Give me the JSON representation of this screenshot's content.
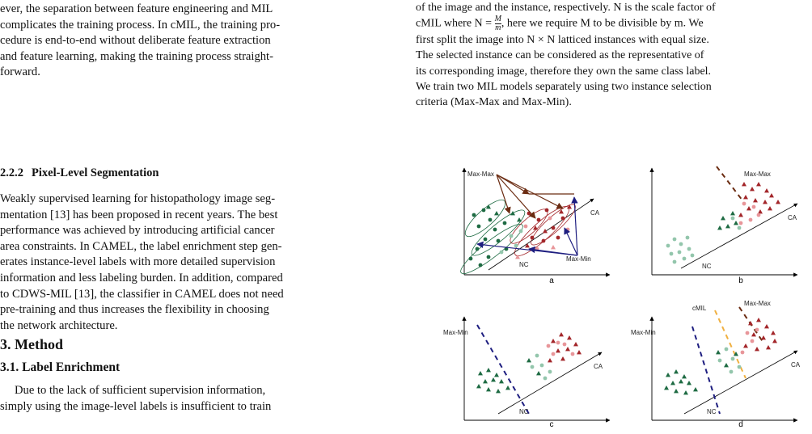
{
  "left": {
    "para1_lines": [
      "ever, the separation between feature engineering and MIL",
      "complicates the training process. In cMIL, the training pro-",
      "cedure is end-to-end without deliberate feature extraction",
      "and feature learning, making the training process straight-",
      "forward."
    ],
    "subsection_number": "2.2.2",
    "subsection_title": "Pixel-Level Segmentation",
    "para2_lines": [
      "Weakly supervised learning for histopathology image seg-",
      "mentation [13] has been proposed in recent years. The best",
      "performance was achieved by introducing artificial cancer",
      "area constraints. In CAMEL, the label enrichment step gen-",
      "erates instance-level labels with more detailed supervision",
      "information and less labeling burden. In addition, compared",
      "to CDWS-MIL [13], the classifier in CAMEL does not need",
      "pre-training and thus increases the flexibility in choosing",
      "the network architecture."
    ],
    "section_title": "3. Method",
    "section_sub_title": "3.1. Label Enrichment",
    "para3_lines": [
      "Due to the lack of sufficient supervision information,",
      "simply using the image-level labels is insufficient to train"
    ]
  },
  "right": {
    "line1": "of the image and the instance, respectively. N is the scale factor of",
    "line2_a": "cMIL where N = ",
    "line2_frac_num": "M",
    "line2_frac_den": "m",
    "line2_b": ", here we require M to be divisible by m. We",
    "lines_rest": [
      "first split the image into N × N latticed instances with equal size.",
      "The selected instance can be considered as the representative of",
      "its corresponding image, therefore they own the same class label.",
      "We train two MIL models separately using two instance selection",
      "criteria (Max-Max and Max-Min)."
    ]
  },
  "figure": {
    "panel_labels": [
      "a",
      "b",
      "c",
      "d"
    ],
    "label_max_max": "Max-Max",
    "label_max_min": "Max-Min",
    "label_ca": "CA",
    "label_nc": "NC",
    "label_cmil": "cMIL",
    "colors": {
      "dark_red": "#a3262a",
      "pink": "#e8969a",
      "dark_green": "#1e6b43",
      "light_green": "#93c6ac",
      "brown": "#6b2c12",
      "navy": "#1e1e80",
      "orange": "#f0b040"
    }
  }
}
